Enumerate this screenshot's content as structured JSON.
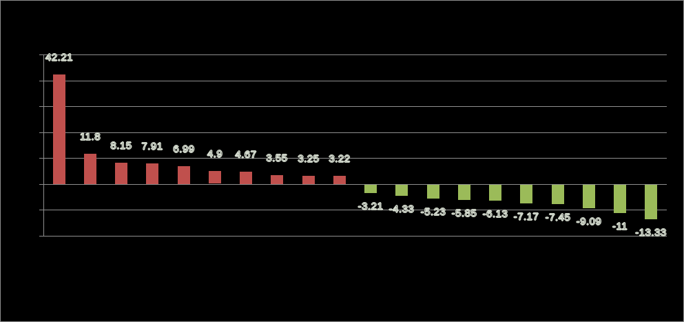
{
  "window": {
    "background_color": "#000000",
    "border_color": "#8e8e8e"
  },
  "chart_data": {
    "type": "bar",
    "title": "",
    "xlabel": "",
    "ylabel": "",
    "categories": [],
    "x_axis_labels_visible": false,
    "y_axis_tick_labels_visible": false,
    "legend_visible": false,
    "grid": true,
    "ylim": [
      -20,
      50
    ],
    "gridline_step": 10,
    "values": [
      42.21,
      11.8,
      8.15,
      7.91,
      6.99,
      4.9,
      4.67,
      3.55,
      3.25,
      3.22,
      -3.21,
      -4.33,
      -5.23,
      -5.85,
      -6.13,
      -7.17,
      -7.45,
      -9.09,
      -11,
      -13.33
    ],
    "data_labels": [
      "42.21",
      "11.8",
      "8.15",
      "7.91",
      "6.99",
      "4.9",
      "4.67",
      "3.55",
      "3.25",
      "3.22",
      "-3.21",
      "-4.33",
      "-5.23",
      "-5.85",
      "-6.13",
      "-7.17",
      "-7.45",
      "-9.09",
      "-11",
      "-13.33"
    ],
    "colors": {
      "positive_bar": "#C0504D",
      "negative_bar": "#9BBB59",
      "gridline": "#8f8f8f",
      "axis_line": "#8f8f8f",
      "label_fill": "#000000",
      "label_outline": "#d6ddd0",
      "plot_background": "#000000"
    },
    "legend_position": "none"
  }
}
